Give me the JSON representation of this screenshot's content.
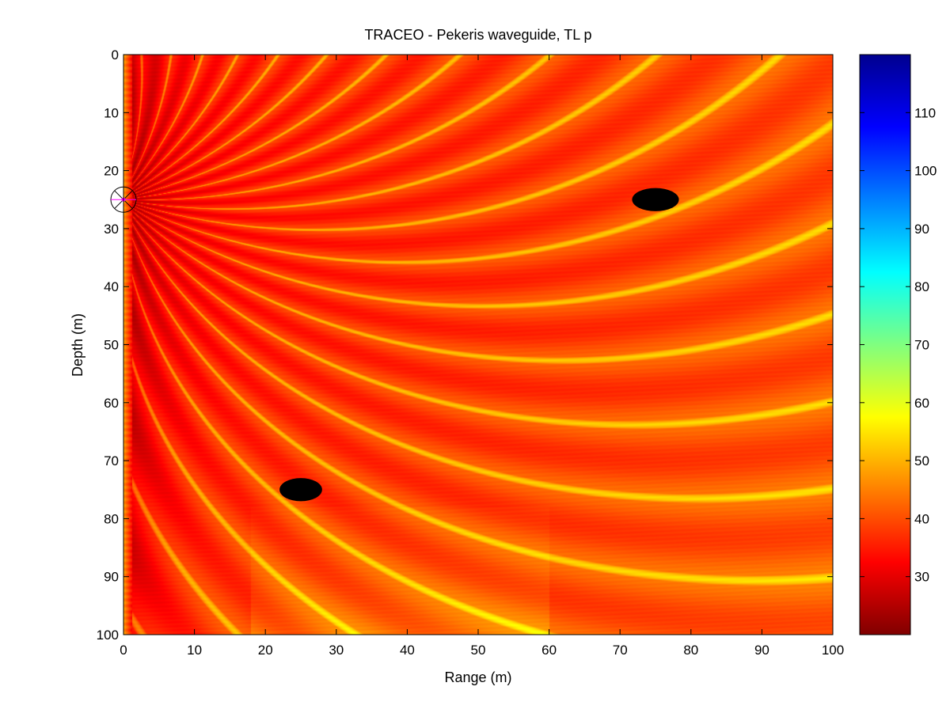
{
  "chart_data": {
    "type": "heatmap",
    "title": "TRACEO - Pekeris waveguide, TL p",
    "xlabel": "Range (m)",
    "ylabel": "Depth (m)",
    "xlim": [
      0,
      100
    ],
    "ylim": [
      0,
      100
    ],
    "y_inverted": true,
    "grid": false,
    "xticks": [
      0,
      10,
      20,
      30,
      40,
      50,
      60,
      70,
      80,
      90,
      100
    ],
    "yticks": [
      0,
      10,
      20,
      30,
      40,
      50,
      60,
      70,
      80,
      90,
      100
    ],
    "colorbar": {
      "colormap": "jet-reversed",
      "range": [
        20,
        120
      ],
      "ticks": [
        30,
        40,
        50,
        60,
        70,
        80,
        90,
        100,
        110
      ],
      "placement": "right"
    },
    "field": {
      "quantity": "transmission loss",
      "source": {
        "range": 0,
        "depth": 25
      },
      "background_level": 35
    },
    "objects": [
      {
        "shape": "ellipse",
        "range_center": 75,
        "depth_center": 25,
        "range_halfwidth": 3.3,
        "depth_halfwidth": 2.0
      },
      {
        "shape": "ellipse",
        "range_center": 25,
        "depth_center": 75,
        "range_halfwidth": 3.0,
        "depth_halfwidth": 2.0
      }
    ]
  }
}
